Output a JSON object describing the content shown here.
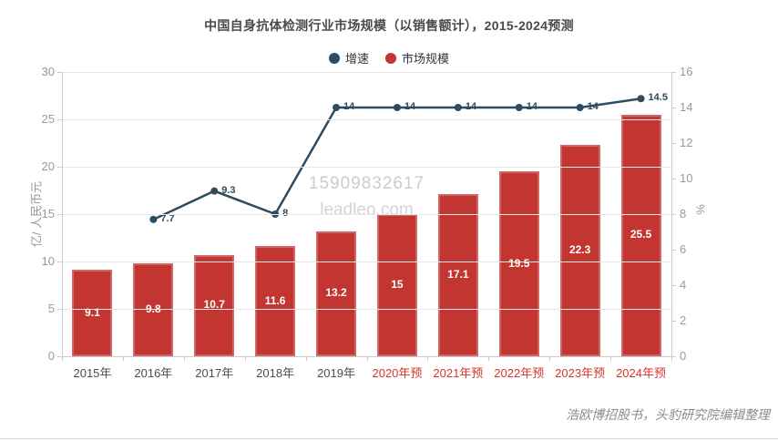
{
  "chart_data": {
    "type": "combo-bar-line",
    "title": "中国自身抗体检测行业市场规模（以销售额计），2015-2024预测",
    "categories": [
      "2015年",
      "2016年",
      "2017年",
      "2018年",
      "2019年",
      "2020年预",
      "2021年预",
      "2022年预",
      "2023年预",
      "2024年预"
    ],
    "forecast_start_index": 5,
    "series": [
      {
        "name": "增速",
        "type": "line",
        "axis": "right",
        "color": "#2f4b60",
        "values": [
          null,
          7.7,
          9.3,
          8,
          14,
          14,
          14,
          14,
          14,
          14.5
        ]
      },
      {
        "name": "市场规模",
        "type": "bar",
        "axis": "left",
        "color": "#c23531",
        "values": [
          9.1,
          9.8,
          10.7,
          11.6,
          13.2,
          15,
          17.1,
          19.5,
          22.3,
          25.5
        ]
      }
    ],
    "left_axis": {
      "name": "亿/ 人民币元",
      "min": 0,
      "max": 30,
      "step": 5
    },
    "right_axis": {
      "name": "%",
      "min": 0,
      "max": 16,
      "step": 2
    },
    "legend": {
      "position": "top",
      "items": [
        "增速",
        "市场规模"
      ]
    },
    "grid": true
  },
  "colors": {
    "bar": "#c23531",
    "line": "#2f4b60",
    "forecast_label": "#d5342b",
    "axis_text": "#999999",
    "gridline": "#e8e8e8"
  },
  "watermark": {
    "line1": "15909832617",
    "line2": "leadleo.com"
  },
  "footer": {
    "source": "浩欧博招股书，头豹研究院编辑整理"
  }
}
